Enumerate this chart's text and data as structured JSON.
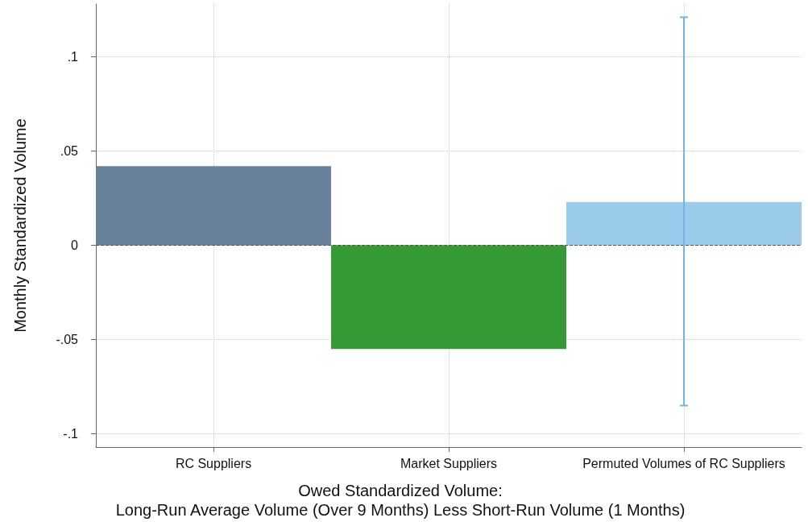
{
  "chart_data": {
    "type": "bar",
    "categories": [
      "RC Suppliers",
      "Market Suppliers",
      "Permuted Volumes of RC Suppliers"
    ],
    "values": [
      0.042,
      -0.055,
      0.023
    ],
    "colors": [
      "#67829a",
      "#359a35",
      "#9bcbea"
    ],
    "errors": [
      null,
      null,
      [
        -0.085,
        0.121
      ]
    ],
    "xlabel": "Owed Standardized Volume:\nLong-Run Average Volume (Over 9 Months) Less Short-Run Volume (1 Months)",
    "ylabel": "Monthly Standardized Volume",
    "ylim": [
      -0.107,
      0.128
    ],
    "yticks": [
      {
        "value": -0.1,
        "label": "-.1"
      },
      {
        "value": -0.05,
        "label": "-.05"
      },
      0,
      {
        "value": 0.05,
        "label": ".05"
      },
      {
        "value": 0.1,
        "label": ".1"
      }
    ],
    "ref_lines": [
      {
        "axis": "y",
        "value": 0,
        "label": null,
        "color": "#555555",
        "line_style": "dashed"
      }
    ],
    "grid": true
  }
}
